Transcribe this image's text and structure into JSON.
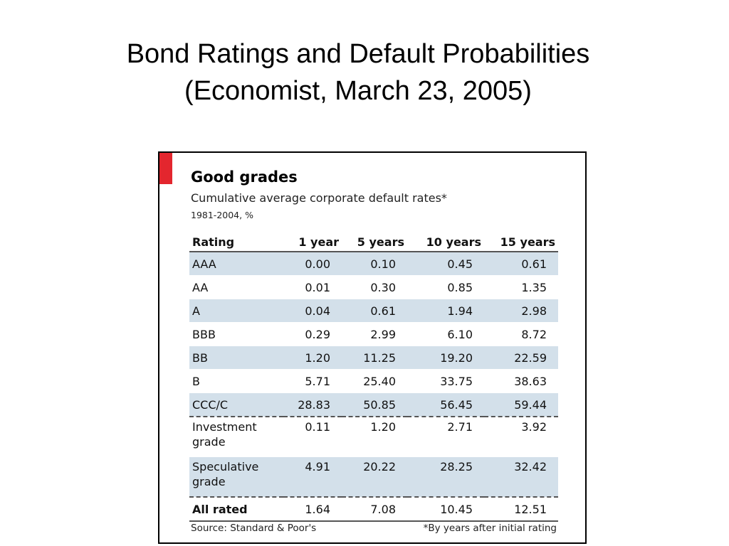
{
  "slide": {
    "title_line1": "Bond Ratings and Default Probabilities",
    "title_line2": "(Economist, March 23, 2005)"
  },
  "colors": {
    "accent_red": "#e3262e",
    "row_shade": "#d3e0ea"
  },
  "chart_data": {
    "type": "table",
    "title": "Good grades",
    "subtitle": "Cumulative average corporate default rates*",
    "period": "1981-2004, %",
    "columns": [
      "Rating",
      "1 year",
      "5 years",
      "10 years",
      "15 years"
    ],
    "rows": [
      {
        "rating": "AAA",
        "values": [
          "0.00",
          "0.10",
          "0.45",
          "0.61"
        ]
      },
      {
        "rating": "AA",
        "values": [
          "0.01",
          "0.30",
          "0.85",
          "1.35"
        ]
      },
      {
        "rating": "A",
        "values": [
          "0.04",
          "0.61",
          "1.94",
          "2.98"
        ]
      },
      {
        "rating": "BBB",
        "values": [
          "0.29",
          "2.99",
          "6.10",
          "8.72"
        ]
      },
      {
        "rating": "BB",
        "values": [
          "1.20",
          "11.25",
          "19.20",
          "22.59"
        ]
      },
      {
        "rating": "B",
        "values": [
          "5.71",
          "25.40",
          "33.75",
          "38.63"
        ]
      },
      {
        "rating": "CCC/C",
        "values": [
          "28.83",
          "50.85",
          "56.45",
          "59.44"
        ]
      },
      {
        "rating": "Investment grade",
        "values": [
          "0.11",
          "1.20",
          "2.71",
          "3.92"
        ]
      },
      {
        "rating": "Speculative grade",
        "values": [
          "4.91",
          "20.22",
          "28.25",
          "32.42"
        ]
      },
      {
        "rating": "All rated",
        "values": [
          "1.64",
          "7.08",
          "10.45",
          "12.51"
        ]
      }
    ],
    "source": "Source: Standard & Poor's",
    "footnote": "*By years after initial rating"
  }
}
